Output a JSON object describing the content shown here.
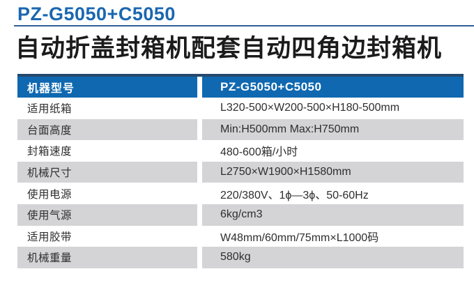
{
  "page": {
    "model_title": "PZ-G5050+C5050",
    "subtitle": "自动折盖封箱机配套自动四角边封箱机"
  },
  "colors": {
    "title_blue": "#1a67b0",
    "header_blue": "#0f68b0",
    "table_top_border_navy": "#26486d",
    "row_stripe_gray": "#d4d4d6",
    "underline_blue": "#2e6096"
  },
  "table": {
    "header": {
      "label": "机器型号",
      "value": "PZ-G5050+C5050"
    },
    "rows": [
      {
        "label": "适用纸箱",
        "value": "L320-500×W200-500×H180-500mm"
      },
      {
        "label": "台面高度",
        "value": "Min:H500mm Max:H750mm"
      },
      {
        "label": "封箱速度",
        "value": "480-600箱/小时"
      },
      {
        "label": "机械尺寸",
        "value": "L2750×W1900×H1580mm"
      },
      {
        "label": "使用电源",
        "value": "220/380V、1ϕ—3ϕ、50-60Hz"
      },
      {
        "label": "使用气源",
        "value": "6kg/cm3"
      },
      {
        "label": "适用胶带",
        "value": "W48mm/60mm/75mm×L1000码"
      },
      {
        "label": "机械重量",
        "value": "580kg"
      }
    ]
  }
}
